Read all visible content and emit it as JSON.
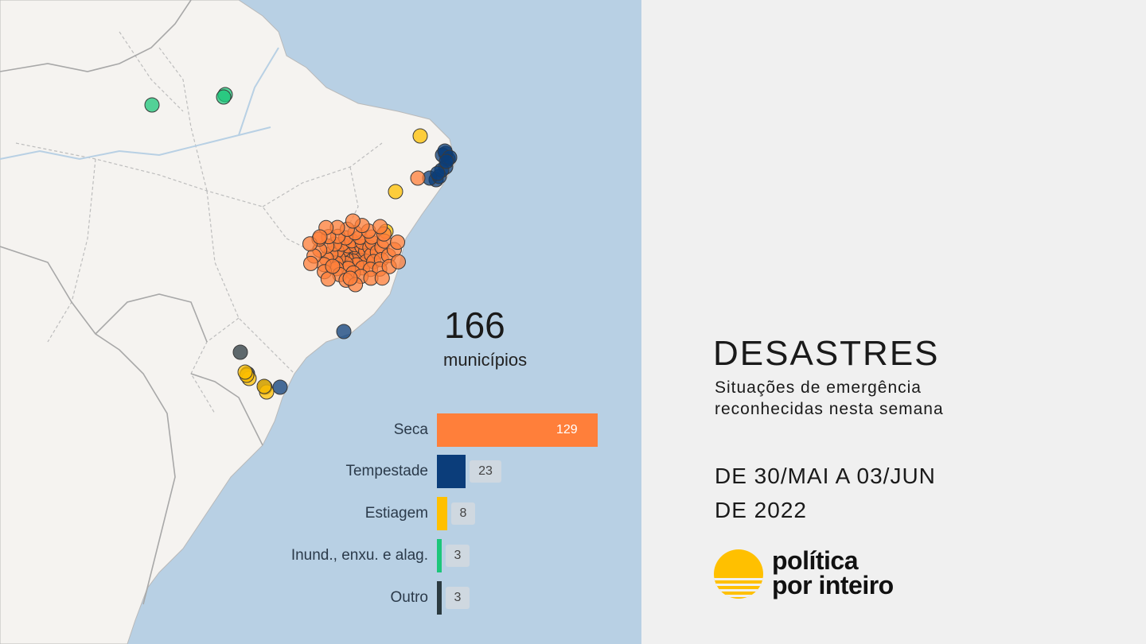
{
  "total": {
    "value": "166",
    "label": "municípios"
  },
  "chart_data": {
    "type": "bar",
    "orientation": "horizontal",
    "categories": [
      "Seca",
      "Tempestade",
      "Estiagem",
      "Inund., enxu. e alag.",
      "Outro"
    ],
    "values": [
      129,
      23,
      8,
      3,
      3
    ],
    "colors": [
      "#ff7f3a",
      "#0b3d7a",
      "#ffc000",
      "#1cc67a",
      "#2b3a40"
    ]
  },
  "title": "DESASTRES",
  "subtitle_lines": [
    "Situações de emergência",
    "reconhecidas nesta semana"
  ],
  "date_lines": [
    "DE 30/MAI A 03/JUN",
    "DE 2022"
  ],
  "brand": {
    "line1": "política",
    "line2": "por inteiro",
    "accent": "#ffc000"
  },
  "map": {
    "sea_color": "#b8d0e4",
    "land_color": "#f5f3f0",
    "markers": [
      {
        "category": "Inund., enxu. e alag.",
        "count": 3
      },
      {
        "category": "Outro",
        "count": 3
      },
      {
        "category": "Tempestade",
        "count": 23
      },
      {
        "category": "Estiagem",
        "count": 8
      },
      {
        "category": "Seca",
        "count": 129
      }
    ]
  }
}
